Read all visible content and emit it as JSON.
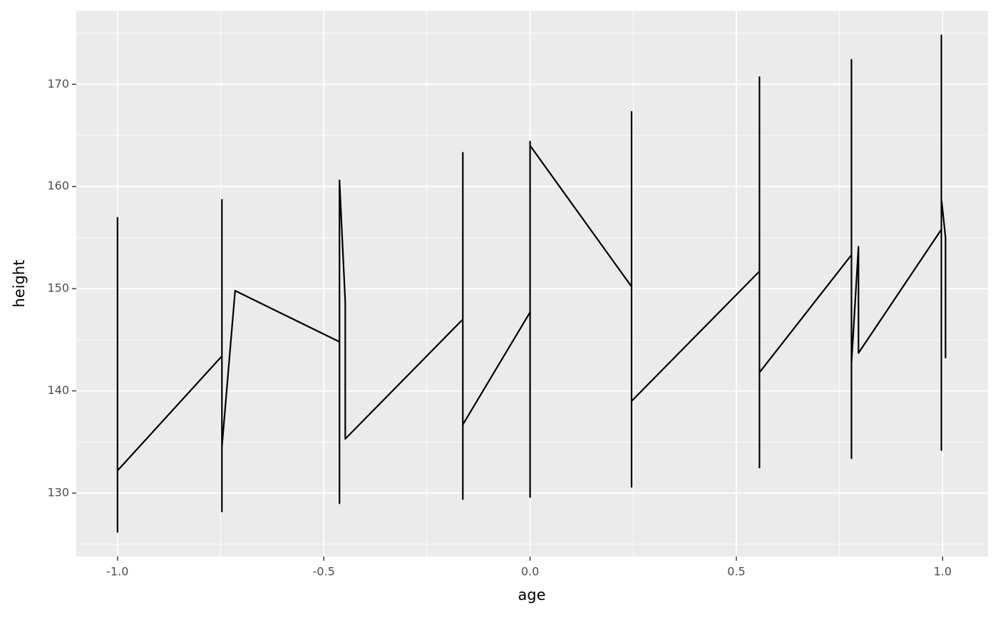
{
  "chart_data": {
    "type": "line",
    "x_label": "age",
    "y_label": "height",
    "x": [
      -1.0,
      -1.0,
      -1.0,
      -0.747,
      -0.747,
      -0.747,
      -0.747,
      -0.715,
      -0.462,
      -0.462,
      -0.462,
      -0.448,
      -0.448,
      -0.163,
      -0.163,
      -0.163,
      -0.163,
      0.0,
      0.0,
      0.0,
      0.0,
      0.246,
      0.246,
      0.246,
      0.246,
      0.556,
      0.556,
      0.556,
      0.556,
      0.779,
      0.779,
      0.779,
      0.779,
      0.796,
      0.796,
      0.997,
      0.997,
      0.997,
      0.997,
      1.007,
      1.007
    ],
    "values": [
      157,
      126.2,
      132.2,
      143.4,
      128.2,
      158.7,
      134.5,
      149.8,
      144.8,
      129.0,
      160.6,
      148.7,
      135.3,
      147.0,
      129.4,
      163.3,
      136.7,
      147.7,
      129.6,
      164.4,
      164.0,
      150.2,
      130.6,
      167.3,
      139.0,
      151.7,
      132.5,
      170.7,
      141.8,
      153.3,
      133.4,
      172.4,
      142.7,
      154.1,
      143.7,
      155.8,
      134.2,
      174.8,
      158.8,
      155.0,
      143.2
    ],
    "color": "#000000",
    "xlim": [
      -1.1,
      1.11
    ],
    "ylim": [
      123.8,
      177.2
    ],
    "xticks": [
      {
        "value": -1.0,
        "label": "-1.0"
      },
      {
        "value": -0.5,
        "label": "-0.5"
      },
      {
        "value": 0.0,
        "label": "0.0"
      },
      {
        "value": 0.5,
        "label": "0.5"
      },
      {
        "value": 1.0,
        "label": "1.0"
      }
    ],
    "yticks": [
      130,
      140,
      150,
      160,
      170
    ],
    "grid": true
  }
}
